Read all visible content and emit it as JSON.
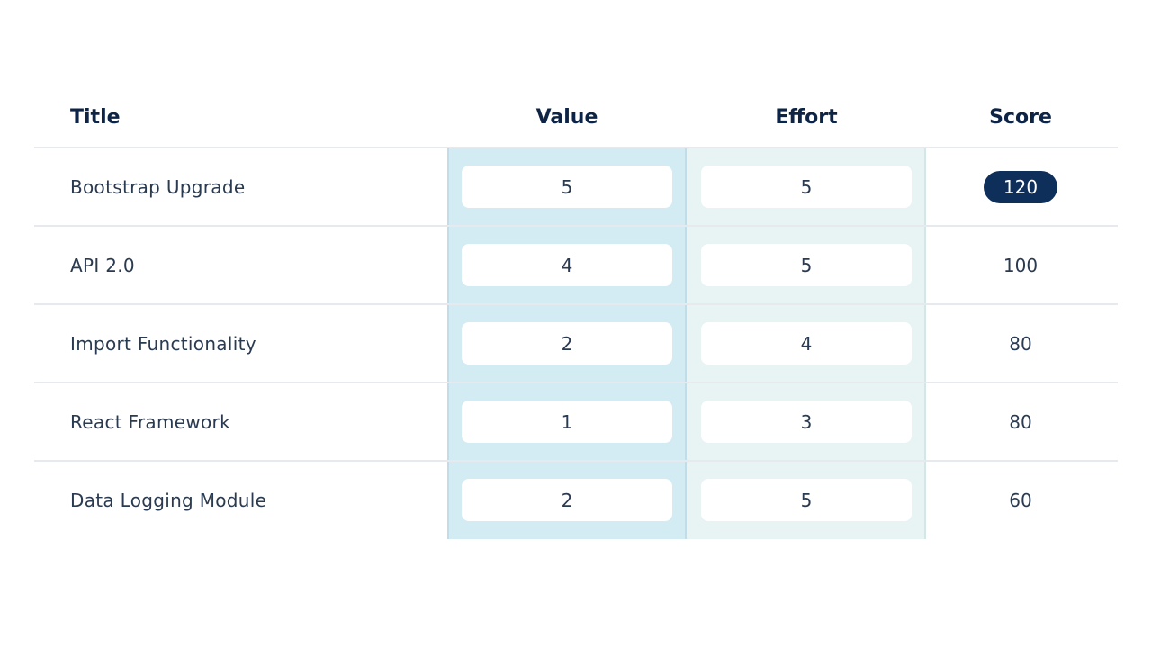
{
  "table": {
    "headers": {
      "title": "Title",
      "value": "Value",
      "effort": "Effort",
      "score": "Score"
    },
    "rows": [
      {
        "title": "Bootstrap Upgrade",
        "value": "5",
        "effort": "5",
        "score": "120",
        "highlighted": true
      },
      {
        "title": "API 2.0",
        "value": "4",
        "effort": "5",
        "score": "100",
        "highlighted": false
      },
      {
        "title": "Import Functionality",
        "value": "2",
        "effort": "4",
        "score": "80",
        "highlighted": false
      },
      {
        "title": "React Framework",
        "value": "1",
        "effort": "3",
        "score": "80",
        "highlighted": false
      },
      {
        "title": "Data Logging Module",
        "value": "2",
        "effort": "5",
        "score": "60",
        "highlighted": false
      }
    ]
  },
  "colors": {
    "value_column_bg": "#d3ebf3",
    "effort_column_bg": "#e8f3f4",
    "header_text": "#0d2446",
    "score_pill_bg": "#0d2f5a"
  }
}
